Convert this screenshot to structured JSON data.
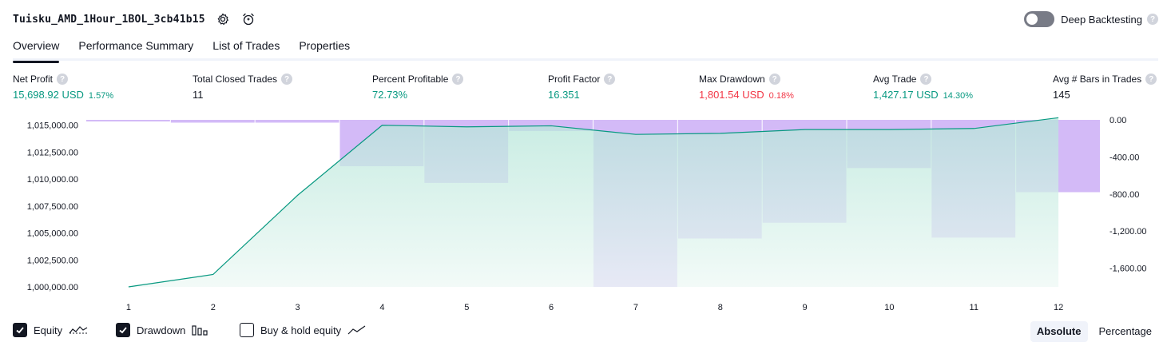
{
  "header": {
    "title": "Tuisku_AMD_1Hour_1BOL_3cb41b15",
    "settings_icon": "gear-icon",
    "alert_icon": "alarm-add-icon",
    "deep_backtesting_label": "Deep Backtesting",
    "deep_backtesting_enabled": false,
    "help_glyph": "?"
  },
  "tabs": [
    {
      "label": "Overview",
      "active": true
    },
    {
      "label": "Performance Summary",
      "active": false
    },
    {
      "label": "List of Trades",
      "active": false
    },
    {
      "label": "Properties",
      "active": false
    }
  ],
  "stats": {
    "net_profit": {
      "label": "Net Profit",
      "value": "15,698.92 USD",
      "pct": "1.57%"
    },
    "total_closed_trades": {
      "label": "Total Closed Trades",
      "value": "11"
    },
    "percent_profitable": {
      "label": "Percent Profitable",
      "value": "72.73%"
    },
    "profit_factor": {
      "label": "Profit Factor",
      "value": "16.351"
    },
    "max_drawdown": {
      "label": "Max Drawdown",
      "value": "1,801.54 USD",
      "pct": "0.18%"
    },
    "avg_trade": {
      "label": "Avg Trade",
      "value": "1,427.17 USD",
      "pct": "14.30%"
    },
    "avg_bars": {
      "label": "Avg # Bars in Trades",
      "value": "145"
    }
  },
  "chart_data": {
    "type": "area",
    "x": [
      1,
      2,
      3,
      4,
      5,
      6,
      7,
      8,
      9,
      10,
      11,
      12
    ],
    "left_axis_ticks": [
      "1,015,000.00",
      "1,012,500.00",
      "1,010,000.00",
      "1,007,500.00",
      "1,005,000.00",
      "1,002,500.00",
      "1,000,000.00"
    ],
    "left_axis_values": [
      1015000,
      1012500,
      1010000,
      1007500,
      1005000,
      1002500,
      1000000
    ],
    "left_ylim": [
      1000000,
      1015500
    ],
    "right_axis_ticks": [
      "0.00",
      "-400.00",
      "-800.00",
      "-1,200.00",
      "-1,600.00"
    ],
    "right_axis_values": [
      0,
      -400,
      -800,
      -1200,
      -1600
    ],
    "right_ylim": [
      -1801.54,
      0
    ],
    "series": [
      {
        "name": "Equity",
        "color": "#089981",
        "values": [
          1000000,
          1001150,
          1008500,
          1015000,
          1014850,
          1014950,
          1014150,
          1014250,
          1014600,
          1014600,
          1014700,
          1015700
        ]
      },
      {
        "name": "Drawdown",
        "color": "#c8a9f5",
        "values": [
          -3,
          -30,
          -30,
          -500,
          -680,
          -120,
          -1801.54,
          -1280,
          -1110,
          -520,
          -1270,
          -780
        ]
      }
    ]
  },
  "legend": [
    {
      "label": "Equity",
      "checked": true,
      "icon": "equity-line-icon"
    },
    {
      "label": "Drawdown",
      "checked": true,
      "icon": "drawdown-bars-icon"
    },
    {
      "label": "Buy & hold equity",
      "checked": false,
      "icon": "buy-hold-line-icon"
    }
  ],
  "modes": {
    "absolute": "Absolute",
    "percentage": "Percentage",
    "active": "absolute"
  }
}
